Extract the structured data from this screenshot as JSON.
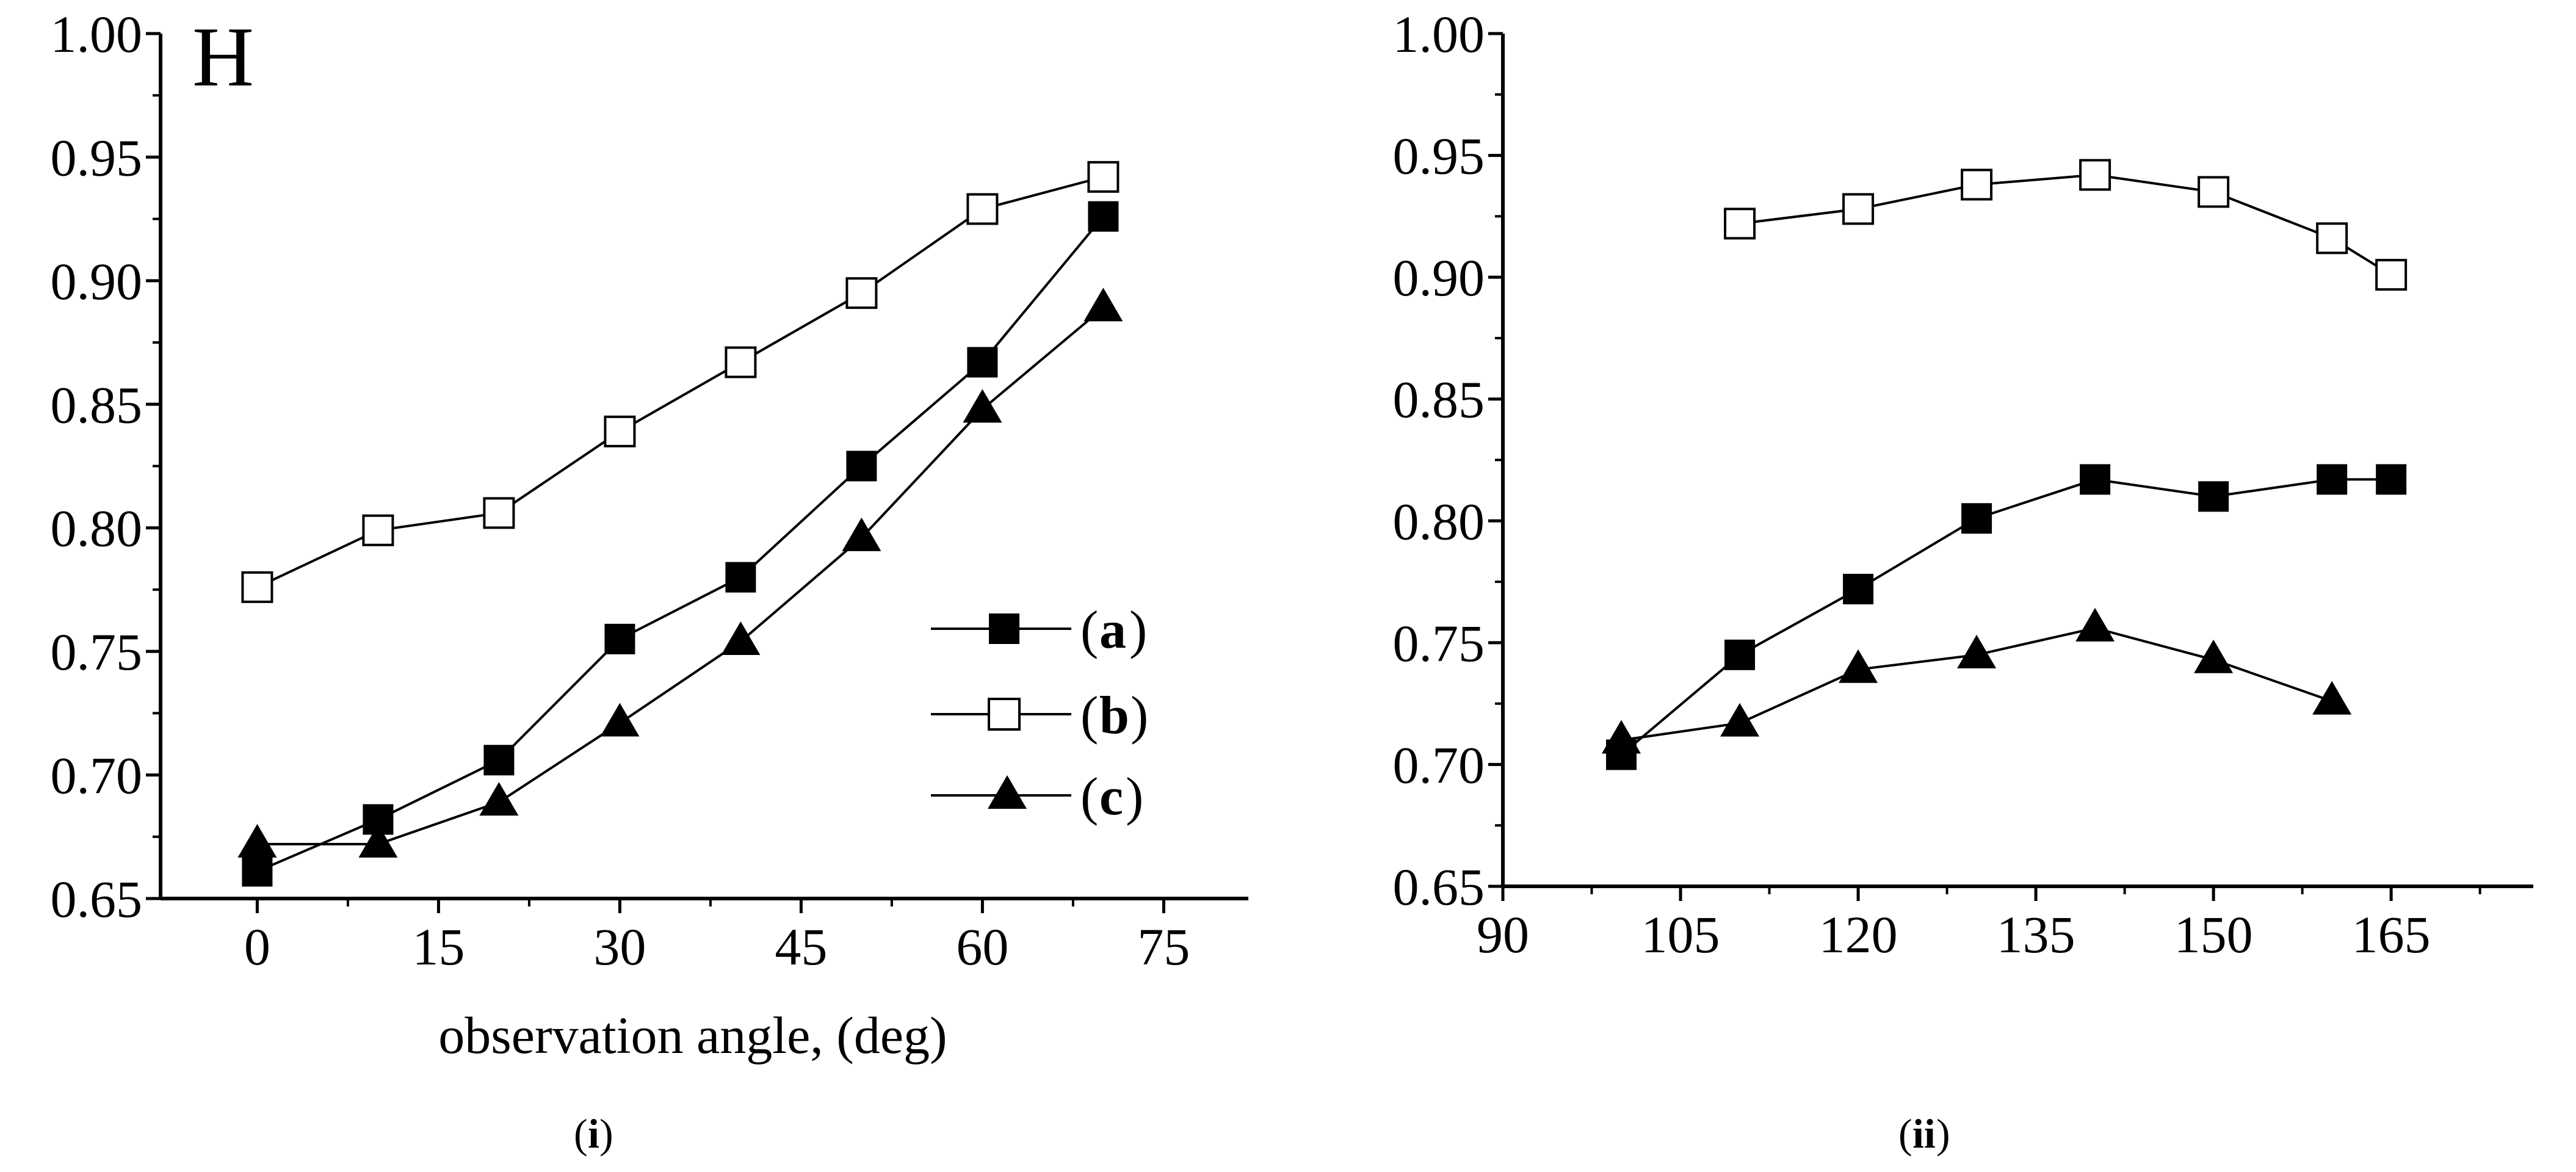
{
  "chart_data": [
    {
      "type": "line",
      "title": "H",
      "xlabel": "observation angle, (deg)",
      "ylabel": "",
      "panel_label": "i",
      "xlim": [
        -8,
        82
      ],
      "ylim": [
        0.65,
        1.0
      ],
      "xticks": [
        "0",
        "15",
        "30",
        "45",
        "60",
        "75"
      ],
      "xtick_values": [
        0,
        15,
        30,
        45,
        60,
        75
      ],
      "yticks": [
        "0.65",
        "0.70",
        "0.75",
        "0.80",
        "0.85",
        "0.90",
        "0.95",
        "1.00"
      ],
      "ytick_values": [
        0.65,
        0.7,
        0.75,
        0.8,
        0.85,
        0.9,
        0.95,
        1.0
      ],
      "x": [
        0,
        10,
        20,
        30,
        40,
        50,
        60,
        70
      ],
      "legend": [
        "a",
        "b",
        "c"
      ],
      "series": [
        {
          "name": "a",
          "marker": "filled-square",
          "values": [
            0.661,
            0.682,
            0.706,
            0.755,
            0.78,
            0.825,
            0.867,
            0.926
          ]
        },
        {
          "name": "b",
          "marker": "open-square",
          "values": [
            0.776,
            0.799,
            0.806,
            0.839,
            0.867,
            0.895,
            0.929,
            0.942
          ]
        },
        {
          "name": "c",
          "marker": "filled-triangle",
          "values": [
            0.672,
            0.672,
            0.689,
            0.721,
            0.754,
            0.796,
            0.848,
            0.889
          ]
        }
      ]
    },
    {
      "type": "line",
      "title": "",
      "xlabel": "",
      "ylabel": "",
      "panel_label": "ii",
      "xlim": [
        90,
        177
      ],
      "ylim": [
        0.65,
        1.0
      ],
      "xticks": [
        "90",
        "105",
        "120",
        "135",
        "150",
        "165"
      ],
      "xtick_values": [
        90,
        105,
        120,
        135,
        150,
        165
      ],
      "yticks": [
        "0.65",
        "0.70",
        "0.75",
        "0.80",
        "0.85",
        "0.90",
        "0.95",
        "1.00"
      ],
      "ytick_values": [
        0.65,
        0.7,
        0.75,
        0.8,
        0.85,
        0.9,
        0.95,
        1.0
      ],
      "series": [
        {
          "name": "a",
          "marker": "filled-square",
          "x": [
            100,
            110,
            120,
            130,
            140,
            150,
            160,
            165
          ],
          "values": [
            0.704,
            0.745,
            0.772,
            0.801,
            0.817,
            0.81,
            0.817,
            0.817
          ]
        },
        {
          "name": "b",
          "marker": "open-square",
          "x": [
            110,
            120,
            130,
            140,
            150,
            160,
            165
          ],
          "values": [
            0.922,
            0.928,
            0.938,
            0.942,
            0.935,
            0.916,
            0.901
          ]
        },
        {
          "name": "c",
          "marker": "filled-triangle",
          "x": [
            100,
            110,
            120,
            130,
            140,
            150,
            160
          ],
          "values": [
            0.71,
            0.717,
            0.739,
            0.745,
            0.756,
            0.743,
            0.726
          ]
        }
      ]
    }
  ]
}
